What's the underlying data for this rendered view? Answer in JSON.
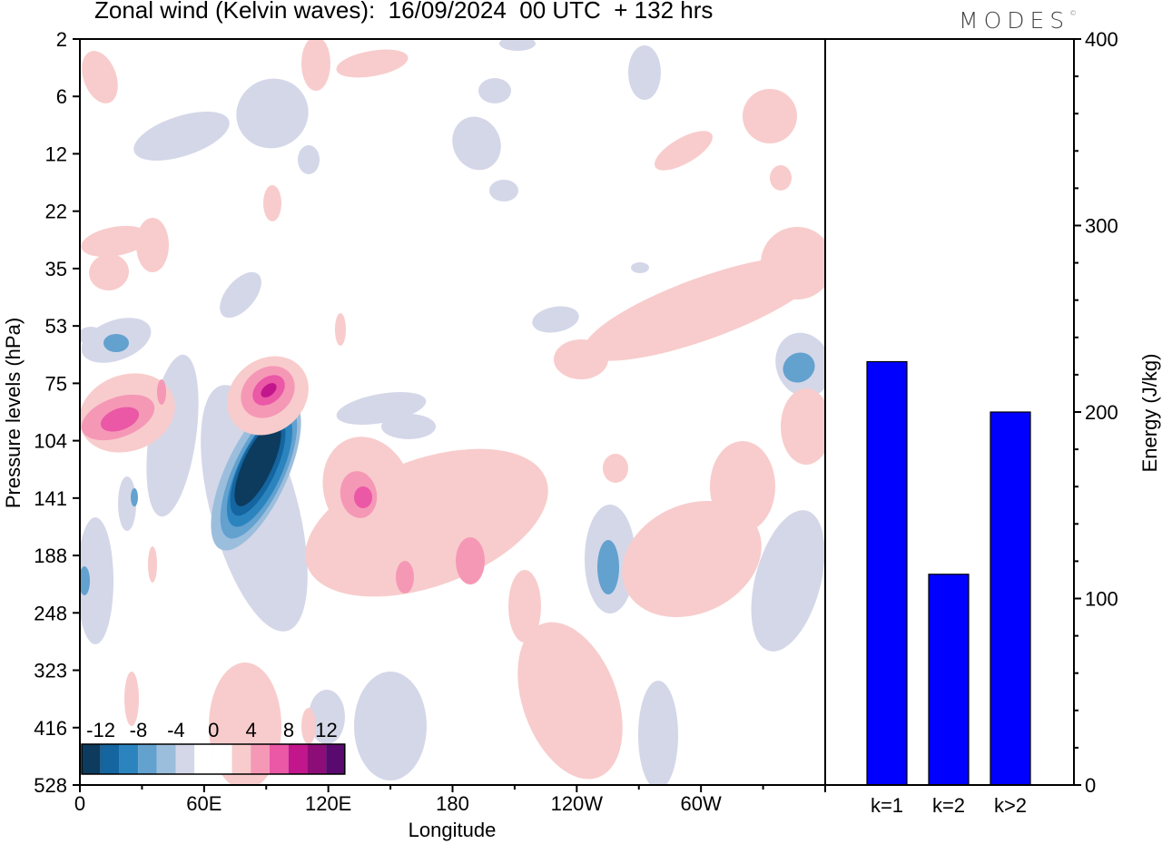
{
  "title": "Zonal wind (Kelvin waves):  16/09/2024  00 UTC  + 132 hrs",
  "logo": "MODES",
  "chart_data": [
    {
      "type": "heatmap",
      "xlabel": "Longitude",
      "ylabel": "Pressure levels (hPa)",
      "x_ticks": [
        "0",
        "60E",
        "120E",
        "180",
        "120W",
        "60W"
      ],
      "x_tick_degrees": [
        0,
        60,
        120,
        180,
        240,
        300
      ],
      "xlim": [
        0,
        360
      ],
      "y_ticks": [
        "2",
        "6",
        "12",
        "22",
        "35",
        "53",
        "75",
        "104",
        "141",
        "188",
        "248",
        "323",
        "416",
        "528"
      ],
      "colorbar": {
        "tick_labels": [
          "-12",
          "-8",
          "-4",
          "0",
          "4",
          "8",
          "12"
        ],
        "colors": [
          "#0c3b5e",
          "#1465a0",
          "#2c84bf",
          "#63a1cf",
          "#9cbedd",
          "#d4d7e8",
          "#ffffff",
          "#ffffff",
          "#f8cccc",
          "#f598b6",
          "#ea58a6",
          "#c2168c",
          "#8c0d77",
          "#5a0a6e"
        ]
      },
      "features": [
        {
          "sign": "negative",
          "peak": -14,
          "lon": 82,
          "level": 141
        },
        {
          "sign": "positive",
          "peak": 10,
          "lon": 92,
          "level": 75
        },
        {
          "sign": "positive",
          "peak": 6,
          "lon": 12,
          "level": 104
        },
        {
          "sign": "positive",
          "peak": 6,
          "lon": 135,
          "level": 141
        },
        {
          "sign": "positive",
          "peak": 6,
          "lon": 188,
          "level": 188
        },
        {
          "sign": "negative",
          "peak": -6,
          "lon": 256,
          "level": 188
        },
        {
          "sign": "negative",
          "peak": -6,
          "lon": 350,
          "level": 75
        }
      ]
    },
    {
      "type": "bar",
      "categories": [
        "k=1",
        "k=2",
        "k>2"
      ],
      "values": [
        227,
        113,
        200
      ],
      "ylabel": "Energy (J/kg)",
      "ylim": [
        0,
        400
      ],
      "y_ticks": [
        "0",
        "100",
        "200",
        "300",
        "400"
      ],
      "bar_color": "#0000ff"
    }
  ]
}
